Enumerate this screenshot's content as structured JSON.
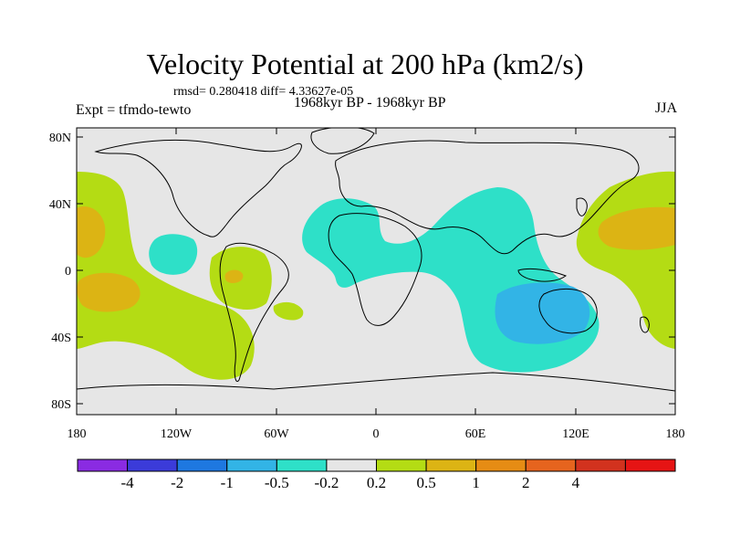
{
  "title": "Velocity Potential at 200 hPa (km2/s)",
  "stats": "rmsd= 0.280418 diff= 4.33627e-05",
  "experiment": "Expt = tfmdo-tewto",
  "period": "1968kyr BP - 1968kyr BP",
  "season": "JJA",
  "map": {
    "lat_ticks": [
      "80N",
      "40N",
      "0",
      "40S",
      "80S"
    ],
    "lon_ticks": [
      "180",
      "120W",
      "60W",
      "0",
      "60E",
      "120E",
      "180"
    ]
  },
  "colorbar": {
    "colors": [
      "#8a2be2",
      "#3b3bd9",
      "#1e78e0",
      "#32b4e6",
      "#2ee0c8",
      "#e6e6e6",
      "#b4dc14",
      "#dcb414",
      "#e68c14",
      "#e6641e",
      "#d2321e",
      "#e61414"
    ],
    "labels": [
      "-4",
      "-2",
      "-1",
      "-0.5",
      "-0.2",
      "0.2",
      "0.5",
      "1",
      "2",
      "4"
    ]
  },
  "colors": {
    "land_bg": "#e6e6e6",
    "negative_weak": "#2ee0c8",
    "negative_mid": "#32b4e6",
    "positive_weak": "#b4dc14",
    "positive_mid": "#dcb414"
  }
}
